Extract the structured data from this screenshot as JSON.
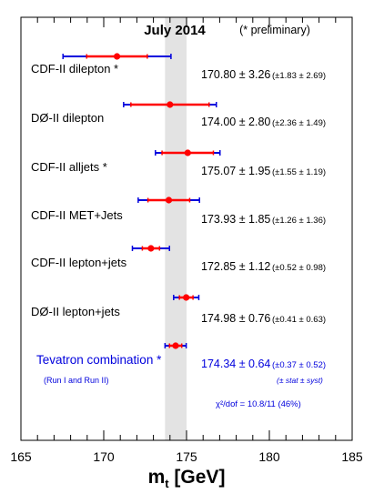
{
  "chart_data": {
    "type": "scatter",
    "subtype": "horizontal error-bar comparison",
    "title": "July 2014",
    "note": "(* preliminary)",
    "xlabel_main": "m",
    "xlabel_sub": "t",
    "xlabel_unit": " [GeV]",
    "xlim": [
      165,
      185
    ],
    "x_ticks": [
      "165",
      "170",
      "175",
      "180",
      "185"
    ],
    "band": {
      "x_min": 173.7,
      "x_max": 175.0,
      "color": "#e3e3e3"
    },
    "colors": {
      "stat": "#ff0000",
      "syst": "#0000dd",
      "point": "#ff0000",
      "combination_text": "#0000dd",
      "text": "#000000"
    },
    "measurements": [
      {
        "label": "CDF-II dilepton *",
        "value": 170.8,
        "total": 3.26,
        "stat": 1.83,
        "syst": 2.69,
        "value_text": "170.80 ± 3.26",
        "breakdown_text": "(±1.83 ± 2.69)"
      },
      {
        "label": "DØ-II dilepton",
        "value": 174.0,
        "total": 2.8,
        "stat": 2.36,
        "syst": 1.49,
        "value_text": "174.00 ± 2.80",
        "breakdown_text": "(±2.36 ± 1.49)"
      },
      {
        "label": "CDF-II alljets *",
        "value": 175.07,
        "total": 1.95,
        "stat": 1.55,
        "syst": 1.19,
        "value_text": "175.07 ± 1.95",
        "breakdown_text": "(±1.55 ± 1.19)"
      },
      {
        "label": "CDF-II MET+Jets",
        "value": 173.93,
        "total": 1.85,
        "stat": 1.26,
        "syst": 1.36,
        "value_text": "173.93 ± 1.85",
        "breakdown_text": "(±1.26 ± 1.36)"
      },
      {
        "label": "CDF-II lepton+jets",
        "value": 172.85,
        "total": 1.12,
        "stat": 0.52,
        "syst": 0.98,
        "value_text": "172.85 ± 1.12",
        "breakdown_text": "(±0.52 ± 0.98)"
      },
      {
        "label": "DØ-II lepton+jets",
        "value": 174.98,
        "total": 0.76,
        "stat": 0.41,
        "syst": 0.63,
        "value_text": "174.98 ± 0.76",
        "breakdown_text": "(±0.41 ± 0.63)"
      },
      {
        "label": "Tevatron combination *",
        "value": 174.34,
        "total": 0.64,
        "stat": 0.37,
        "syst": 0.52,
        "value_text": "174.34 ± 0.64",
        "breakdown_text": "(±0.37 ± 0.52)",
        "sublabel": "(Run I and Run II)",
        "legend_text": "(± stat ± syst)",
        "chi2_text": "χ²/dof = 10.8/11 (46%)",
        "is_combination": true
      }
    ]
  }
}
